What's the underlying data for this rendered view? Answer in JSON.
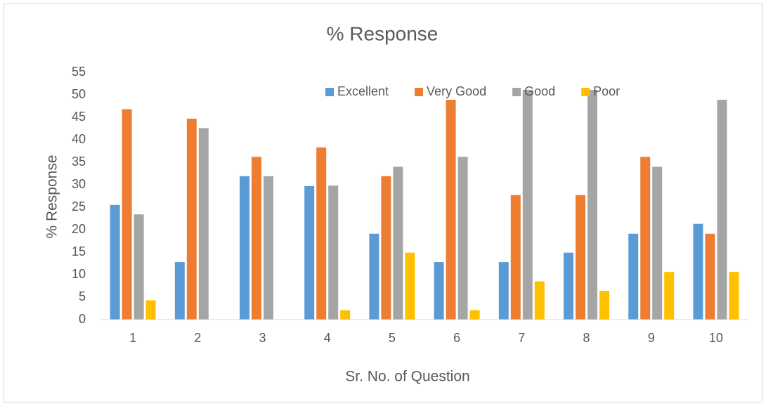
{
  "chart_data": {
    "type": "bar",
    "title": "% Response",
    "x_label": "Sr. No. of Question",
    "y_label": "% Response",
    "categories": [
      "1",
      "2",
      "3",
      "4",
      "5",
      "6",
      "7",
      "8",
      "9",
      "10"
    ],
    "series": [
      {
        "name": "Excellent",
        "color": "#5b9bd5",
        "values": [
          25.5,
          12.8,
          31.9,
          29.7,
          19.1,
          12.8,
          12.8,
          14.9,
          19.1,
          21.3
        ]
      },
      {
        "name": "Very Good",
        "color": "#ed7d31",
        "values": [
          46.8,
          44.7,
          36.2,
          38.3,
          31.9,
          48.9,
          27.7,
          27.7,
          36.2,
          19.1
        ]
      },
      {
        "name": "Good",
        "color": "#a5a5a5",
        "values": [
          23.4,
          42.6,
          31.9,
          29.8,
          34.0,
          36.2,
          51.1,
          51.1,
          34.0,
          48.9
        ]
      },
      {
        "name": "Poor",
        "color": "#ffc000",
        "values": [
          4.3,
          0,
          0,
          2.1,
          14.9,
          2.1,
          8.5,
          6.4,
          10.6,
          10.6
        ]
      }
    ],
    "ylim": [
      0,
      55
    ],
    "yticks": [
      0,
      5,
      10,
      15,
      20,
      25,
      30,
      35,
      40,
      45,
      50,
      55
    ],
    "grid": false,
    "legend": "top"
  }
}
